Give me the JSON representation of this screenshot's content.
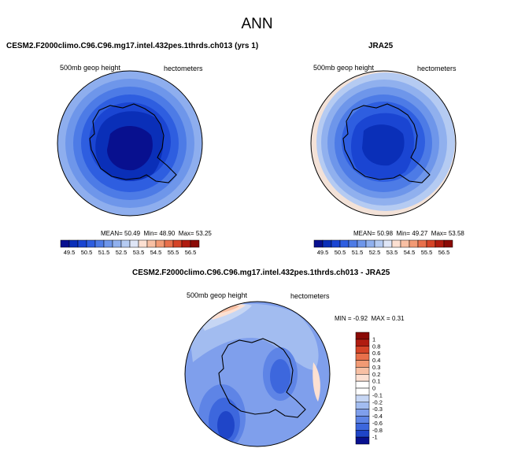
{
  "figure": {
    "title": "ANN",
    "panels": [
      {
        "case": "CESM2.F2000climo.C96.C96.mg17.intel.432pes.1thrds.ch013 (yrs 1)",
        "variable": "500mb geop height",
        "units": "hectometers",
        "stats": {
          "mean_label": "MEAN=",
          "mean": "50.49",
          "min_label": "Min=",
          "min": "48.90",
          "max_label": "Max=",
          "max": "53.25"
        }
      },
      {
        "case": "JRA25",
        "variable": "500mb geop height",
        "units": "hectometers",
        "stats": {
          "mean_label": "MEAN=",
          "mean": "50.98",
          "min_label": "Min=",
          "min": "49.27",
          "max_label": "Max=",
          "max": "53.58"
        }
      },
      {
        "case": "CESM2.F2000climo.C96.C96.mg17.intel.432pes.1thrds.ch013 - JRA25",
        "variable": "500mb geop height",
        "units": "hectometers",
        "stats": {
          "min_label": "MIN =",
          "min": "-0.92",
          "max_label": "MAX =",
          "max": "0.31"
        }
      }
    ]
  },
  "chart_data": [
    {
      "type": "heatmap",
      "projection": "south polar stereographic",
      "variable": "500mb geop height",
      "units": "hectometers",
      "mean": 50.49,
      "min": 48.9,
      "max": 53.25,
      "colorbar_levels": [
        49.5,
        50,
        50.5,
        51,
        51.5,
        52,
        52.5,
        53,
        53.5,
        54,
        54.5,
        55,
        55.5,
        56,
        56.5
      ],
      "colorbar_tick_labels": [
        "49.5",
        "50.5",
        "51.5",
        "52.5",
        "53.5",
        "54.5",
        "55.5",
        "56.5"
      ],
      "colors": [
        "#08108f",
        "#0a2fb8",
        "#1a45d2",
        "#2e5ee0",
        "#4d7be6",
        "#6e96ea",
        "#90b0ee",
        "#b5cbf2",
        "#dfe6f7",
        "#fce0d2",
        "#f8c0a4",
        "#f29a74",
        "#e8704b",
        "#d54427",
        "#b01c10",
        "#8a0a06"
      ]
    },
    {
      "type": "heatmap",
      "projection": "south polar stereographic",
      "variable": "500mb geop height",
      "units": "hectometers",
      "mean": 50.98,
      "min": 49.27,
      "max": 53.58,
      "colorbar_levels": [
        49.5,
        50,
        50.5,
        51,
        51.5,
        52,
        52.5,
        53,
        53.5,
        54,
        54.5,
        55,
        55.5,
        56,
        56.5
      ],
      "colorbar_tick_labels": [
        "49.5",
        "50.5",
        "51.5",
        "52.5",
        "53.5",
        "54.5",
        "55.5",
        "56.5"
      ]
    },
    {
      "type": "heatmap",
      "projection": "south polar stereographic",
      "variable": "500mb geop height",
      "units": "hectometers",
      "min": -0.92,
      "max": 0.31,
      "colorbar_levels": [
        -1,
        -0.8,
        -0.6,
        -0.4,
        -0.3,
        -0.2,
        -0.1,
        0,
        0.1,
        0.2,
        0.3,
        0.4,
        0.6,
        0.8,
        1
      ],
      "colorbar_tick_labels": [
        "1",
        "0.8",
        "0.6",
        "0.4",
        "0.3",
        "0.2",
        "0.1",
        "0",
        "-0.1",
        "-0.2",
        "-0.3",
        "-0.4",
        "-0.6",
        "-0.8",
        "-1"
      ],
      "colors": [
        "#8a0a06",
        "#b01c10",
        "#d54427",
        "#e8704b",
        "#f29a74",
        "#f8c0a4",
        "#fce0d2",
        "#ffffff",
        "#ffffff",
        "#c6d6f4",
        "#a2bcf0",
        "#7f9fec",
        "#5e84e6",
        "#3d67dd",
        "#1f45c8",
        "#08108f"
      ]
    }
  ]
}
